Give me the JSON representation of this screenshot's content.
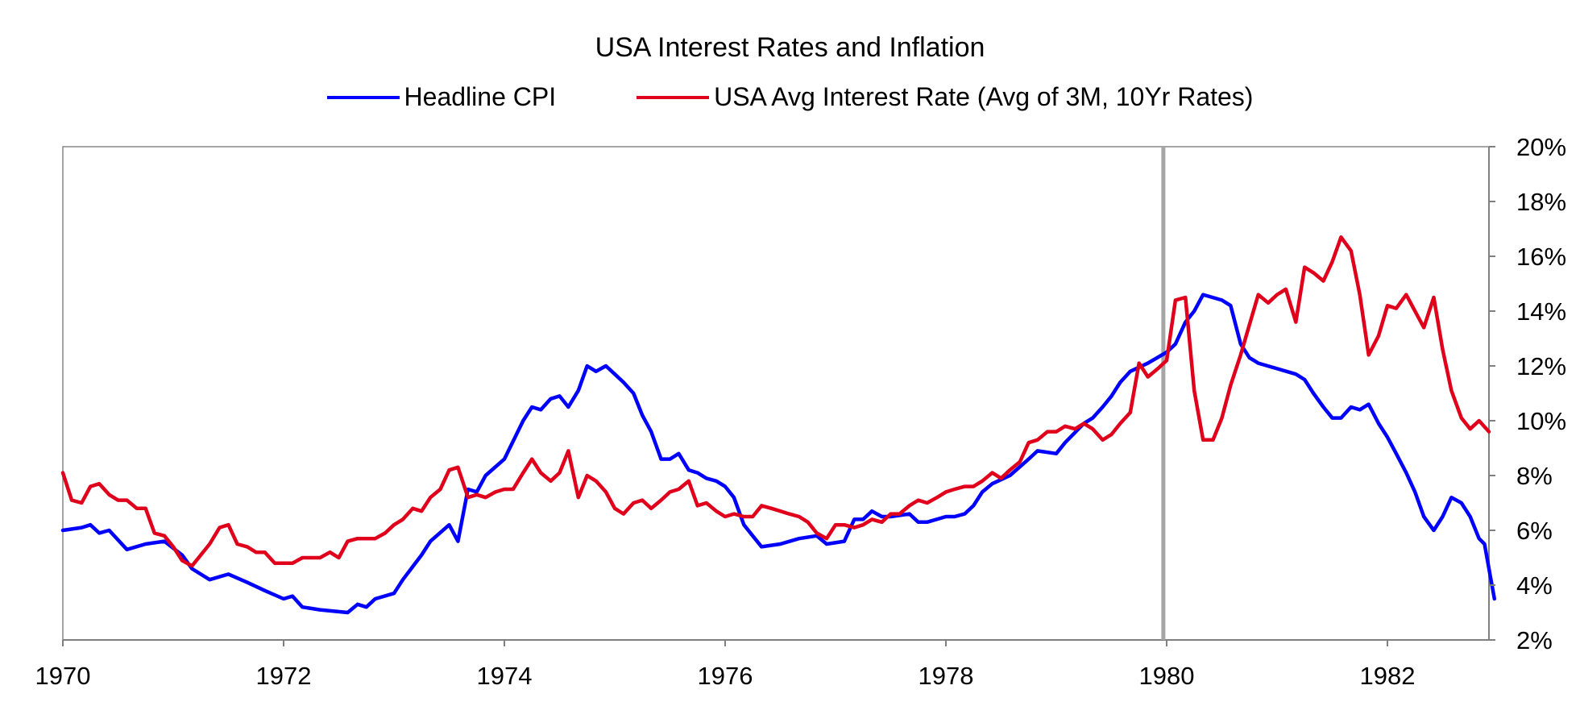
{
  "chart_data": {
    "type": "line",
    "title": "USA Interest Rates and Inflation",
    "xlabel": "",
    "ylabel": "",
    "x_range": [
      1970.0,
      1982.92
    ],
    "y_range": [
      2,
      20
    ],
    "y_axis_side": "right",
    "y_ticks": [
      "20%",
      "18%",
      "16%",
      "14%",
      "12%",
      "10%",
      "8%",
      "6%",
      "4%",
      "2%"
    ],
    "y_tick_values": [
      20,
      18,
      16,
      14,
      12,
      10,
      8,
      6,
      4,
      2
    ],
    "x_ticks": [
      "1970",
      "1972",
      "1974",
      "1976",
      "1978",
      "1980",
      "1982"
    ],
    "x_tick_values": [
      1970,
      1972,
      1974,
      1976,
      1978,
      1980,
      1982
    ],
    "vertical_marker_x": 1979.97,
    "vertical_marker_color": "#a6a6a6",
    "grid": false,
    "legend_position": "top-center",
    "series": [
      {
        "name": "Headline CPI",
        "color": "#0000ff",
        "points": [
          [
            1970.0,
            6.0
          ],
          [
            1970.17,
            6.1
          ],
          [
            1970.25,
            6.2
          ],
          [
            1970.33,
            5.9
          ],
          [
            1970.42,
            6.0
          ],
          [
            1970.58,
            5.3
          ],
          [
            1970.75,
            5.5
          ],
          [
            1970.92,
            5.6
          ],
          [
            1971.08,
            5.1
          ],
          [
            1971.17,
            4.6
          ],
          [
            1971.33,
            4.2
          ],
          [
            1971.5,
            4.4
          ],
          [
            1971.67,
            4.1
          ],
          [
            1971.83,
            3.8
          ],
          [
            1972.0,
            3.5
          ],
          [
            1972.08,
            3.6
          ],
          [
            1972.17,
            3.2
          ],
          [
            1972.33,
            3.1
          ],
          [
            1972.58,
            3.0
          ],
          [
            1972.67,
            3.3
          ],
          [
            1972.75,
            3.2
          ],
          [
            1972.83,
            3.5
          ],
          [
            1973.0,
            3.7
          ],
          [
            1973.08,
            4.2
          ],
          [
            1973.25,
            5.1
          ],
          [
            1973.33,
            5.6
          ],
          [
            1973.5,
            6.2
          ],
          [
            1973.58,
            5.6
          ],
          [
            1973.67,
            7.5
          ],
          [
            1973.75,
            7.4
          ],
          [
            1973.83,
            8.0
          ],
          [
            1974.0,
            8.6
          ],
          [
            1974.17,
            10.0
          ],
          [
            1974.25,
            10.5
          ],
          [
            1974.33,
            10.4
          ],
          [
            1974.42,
            10.8
          ],
          [
            1974.5,
            10.9
          ],
          [
            1974.58,
            10.5
          ],
          [
            1974.67,
            11.1
          ],
          [
            1974.75,
            12.0
          ],
          [
            1974.83,
            11.8
          ],
          [
            1974.92,
            12.0
          ],
          [
            1975.0,
            11.7
          ],
          [
            1975.08,
            11.4
          ],
          [
            1975.17,
            11.0
          ],
          [
            1975.25,
            10.2
          ],
          [
            1975.33,
            9.6
          ],
          [
            1975.42,
            8.6
          ],
          [
            1975.5,
            8.6
          ],
          [
            1975.58,
            8.8
          ],
          [
            1975.67,
            8.2
          ],
          [
            1975.75,
            8.1
          ],
          [
            1975.83,
            7.9
          ],
          [
            1975.92,
            7.8
          ],
          [
            1976.0,
            7.6
          ],
          [
            1976.08,
            7.2
          ],
          [
            1976.17,
            6.2
          ],
          [
            1976.25,
            5.8
          ],
          [
            1976.33,
            5.4
          ],
          [
            1976.5,
            5.5
          ],
          [
            1976.67,
            5.7
          ],
          [
            1976.83,
            5.8
          ],
          [
            1976.92,
            5.5
          ],
          [
            1977.08,
            5.6
          ],
          [
            1977.17,
            6.4
          ],
          [
            1977.25,
            6.4
          ],
          [
            1977.33,
            6.7
          ],
          [
            1977.42,
            6.5
          ],
          [
            1977.5,
            6.5
          ],
          [
            1977.67,
            6.6
          ],
          [
            1977.75,
            6.3
          ],
          [
            1977.83,
            6.3
          ],
          [
            1978.0,
            6.5
          ],
          [
            1978.08,
            6.5
          ],
          [
            1978.17,
            6.6
          ],
          [
            1978.25,
            6.9
          ],
          [
            1978.33,
            7.4
          ],
          [
            1978.42,
            7.7
          ],
          [
            1978.58,
            8.0
          ],
          [
            1978.75,
            8.6
          ],
          [
            1978.83,
            8.9
          ],
          [
            1979.0,
            8.8
          ],
          [
            1979.08,
            9.2
          ],
          [
            1979.25,
            9.9
          ],
          [
            1979.33,
            10.1
          ],
          [
            1979.42,
            10.5
          ],
          [
            1979.5,
            10.9
          ],
          [
            1979.58,
            11.4
          ],
          [
            1979.67,
            11.8
          ],
          [
            1979.83,
            12.1
          ],
          [
            1980.0,
            12.5
          ],
          [
            1980.08,
            12.8
          ],
          [
            1980.17,
            13.6
          ],
          [
            1980.25,
            14.0
          ],
          [
            1980.33,
            14.6
          ],
          [
            1980.5,
            14.4
          ],
          [
            1980.58,
            14.2
          ],
          [
            1980.67,
            12.8
          ],
          [
            1980.75,
            12.3
          ],
          [
            1980.83,
            12.1
          ],
          [
            1981.0,
            11.9
          ],
          [
            1981.17,
            11.7
          ],
          [
            1981.25,
            11.5
          ],
          [
            1981.33,
            11.0
          ],
          [
            1981.42,
            10.5
          ],
          [
            1981.5,
            10.1
          ],
          [
            1981.58,
            10.1
          ],
          [
            1981.67,
            10.5
          ],
          [
            1981.75,
            10.4
          ],
          [
            1981.83,
            10.6
          ],
          [
            1981.92,
            9.9
          ],
          [
            1982.0,
            9.4
          ],
          [
            1982.08,
            8.8
          ],
          [
            1982.17,
            8.1
          ],
          [
            1982.25,
            7.4
          ],
          [
            1982.33,
            6.5
          ],
          [
            1982.42,
            6.0
          ],
          [
            1982.5,
            6.5
          ],
          [
            1982.58,
            7.2
          ],
          [
            1982.67,
            7.0
          ],
          [
            1982.75,
            6.5
          ],
          [
            1982.83,
            5.7
          ],
          [
            1982.88,
            5.5
          ],
          [
            1982.92,
            4.6
          ],
          [
            1982.97,
            3.5
          ]
        ]
      },
      {
        "name": "USA Avg Interest Rate (Avg of 3M, 10Yr Rates)",
        "color": "#e0001b",
        "points": [
          [
            1970.0,
            8.1
          ],
          [
            1970.08,
            7.1
          ],
          [
            1970.17,
            7.0
          ],
          [
            1970.25,
            7.6
          ],
          [
            1970.33,
            7.7
          ],
          [
            1970.42,
            7.3
          ],
          [
            1970.5,
            7.1
          ],
          [
            1970.58,
            7.1
          ],
          [
            1970.67,
            6.8
          ],
          [
            1970.75,
            6.8
          ],
          [
            1970.83,
            5.9
          ],
          [
            1970.92,
            5.8
          ],
          [
            1971.0,
            5.4
          ],
          [
            1971.08,
            4.9
          ],
          [
            1971.17,
            4.7
          ],
          [
            1971.25,
            5.1
          ],
          [
            1971.33,
            5.5
          ],
          [
            1971.42,
            6.1
          ],
          [
            1971.5,
            6.2
          ],
          [
            1971.58,
            5.5
          ],
          [
            1971.67,
            5.4
          ],
          [
            1971.75,
            5.2
          ],
          [
            1971.83,
            5.2
          ],
          [
            1971.92,
            4.8
          ],
          [
            1972.0,
            4.8
          ],
          [
            1972.08,
            4.8
          ],
          [
            1972.17,
            5.0
          ],
          [
            1972.25,
            5.0
          ],
          [
            1972.33,
            5.0
          ],
          [
            1972.42,
            5.2
          ],
          [
            1972.5,
            5.0
          ],
          [
            1972.58,
            5.6
          ],
          [
            1972.67,
            5.7
          ],
          [
            1972.75,
            5.7
          ],
          [
            1972.83,
            5.7
          ],
          [
            1972.92,
            5.9
          ],
          [
            1973.0,
            6.2
          ],
          [
            1973.08,
            6.4
          ],
          [
            1973.17,
            6.8
          ],
          [
            1973.25,
            6.7
          ],
          [
            1973.33,
            7.2
          ],
          [
            1973.42,
            7.5
          ],
          [
            1973.5,
            8.2
          ],
          [
            1973.58,
            8.3
          ],
          [
            1973.67,
            7.2
          ],
          [
            1973.75,
            7.3
          ],
          [
            1973.83,
            7.2
          ],
          [
            1973.92,
            7.4
          ],
          [
            1974.0,
            7.5
          ],
          [
            1974.08,
            7.5
          ],
          [
            1974.17,
            8.1
          ],
          [
            1974.25,
            8.6
          ],
          [
            1974.33,
            8.1
          ],
          [
            1974.42,
            7.8
          ],
          [
            1974.5,
            8.1
          ],
          [
            1974.58,
            8.9
          ],
          [
            1974.67,
            7.2
          ],
          [
            1974.75,
            8.0
          ],
          [
            1974.83,
            7.8
          ],
          [
            1974.92,
            7.4
          ],
          [
            1975.0,
            6.8
          ],
          [
            1975.08,
            6.6
          ],
          [
            1975.17,
            7.0
          ],
          [
            1975.25,
            7.1
          ],
          [
            1975.33,
            6.8
          ],
          [
            1975.42,
            7.1
          ],
          [
            1975.5,
            7.4
          ],
          [
            1975.58,
            7.5
          ],
          [
            1975.67,
            7.8
          ],
          [
            1975.75,
            6.9
          ],
          [
            1975.83,
            7.0
          ],
          [
            1975.92,
            6.7
          ],
          [
            1976.0,
            6.5
          ],
          [
            1976.08,
            6.6
          ],
          [
            1976.17,
            6.5
          ],
          [
            1976.25,
            6.5
          ],
          [
            1976.33,
            6.9
          ],
          [
            1976.42,
            6.8
          ],
          [
            1976.5,
            6.7
          ],
          [
            1976.58,
            6.6
          ],
          [
            1976.67,
            6.5
          ],
          [
            1976.75,
            6.3
          ],
          [
            1976.83,
            5.9
          ],
          [
            1976.92,
            5.7
          ],
          [
            1977.0,
            6.2
          ],
          [
            1977.08,
            6.2
          ],
          [
            1977.17,
            6.1
          ],
          [
            1977.25,
            6.2
          ],
          [
            1977.33,
            6.4
          ],
          [
            1977.42,
            6.3
          ],
          [
            1977.5,
            6.6
          ],
          [
            1977.58,
            6.6
          ],
          [
            1977.67,
            6.9
          ],
          [
            1977.75,
            7.1
          ],
          [
            1977.83,
            7.0
          ],
          [
            1977.92,
            7.2
          ],
          [
            1978.0,
            7.4
          ],
          [
            1978.08,
            7.5
          ],
          [
            1978.17,
            7.6
          ],
          [
            1978.25,
            7.6
          ],
          [
            1978.33,
            7.8
          ],
          [
            1978.42,
            8.1
          ],
          [
            1978.5,
            7.9
          ],
          [
            1978.58,
            8.2
          ],
          [
            1978.67,
            8.5
          ],
          [
            1978.75,
            9.2
          ],
          [
            1978.83,
            9.3
          ],
          [
            1978.92,
            9.6
          ],
          [
            1979.0,
            9.6
          ],
          [
            1979.08,
            9.8
          ],
          [
            1979.17,
            9.7
          ],
          [
            1979.25,
            9.9
          ],
          [
            1979.33,
            9.7
          ],
          [
            1979.42,
            9.3
          ],
          [
            1979.5,
            9.5
          ],
          [
            1979.58,
            9.9
          ],
          [
            1979.67,
            10.3
          ],
          [
            1979.75,
            12.1
          ],
          [
            1979.83,
            11.6
          ],
          [
            1979.92,
            11.9
          ],
          [
            1980.0,
            12.2
          ],
          [
            1980.08,
            14.4
          ],
          [
            1980.17,
            14.5
          ],
          [
            1980.25,
            11.1
          ],
          [
            1980.33,
            9.3
          ],
          [
            1980.42,
            9.3
          ],
          [
            1980.5,
            10.1
          ],
          [
            1980.58,
            11.3
          ],
          [
            1980.67,
            12.4
          ],
          [
            1980.75,
            13.5
          ],
          [
            1980.83,
            14.6
          ],
          [
            1980.92,
            14.3
          ],
          [
            1981.0,
            14.6
          ],
          [
            1981.08,
            14.8
          ],
          [
            1981.17,
            13.6
          ],
          [
            1981.25,
            15.6
          ],
          [
            1981.33,
            15.4
          ],
          [
            1981.42,
            15.1
          ],
          [
            1981.5,
            15.8
          ],
          [
            1981.58,
            16.7
          ],
          [
            1981.67,
            16.2
          ],
          [
            1981.75,
            14.6
          ],
          [
            1981.83,
            12.4
          ],
          [
            1981.92,
            13.1
          ],
          [
            1982.0,
            14.2
          ],
          [
            1982.08,
            14.1
          ],
          [
            1982.17,
            14.6
          ],
          [
            1982.25,
            14.0
          ],
          [
            1982.33,
            13.4
          ],
          [
            1982.42,
            14.5
          ],
          [
            1982.5,
            12.6
          ],
          [
            1982.58,
            11.1
          ],
          [
            1982.67,
            10.1
          ],
          [
            1982.75,
            9.7
          ],
          [
            1982.83,
            10.0
          ],
          [
            1982.92,
            9.6
          ]
        ]
      }
    ]
  }
}
